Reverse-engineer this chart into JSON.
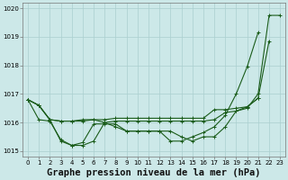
{
  "bg_color": "#cce8e8",
  "grid_color": "#aacfcf",
  "line_color": "#1a5c1a",
  "title": "Graphe pression niveau de la mer (hPa)",
  "xlim": [
    -0.5,
    23.5
  ],
  "ylim": [
    1014.8,
    1020.2
  ],
  "yticks": [
    1015,
    1016,
    1017,
    1018,
    1019,
    1020
  ],
  "xticks": [
    0,
    1,
    2,
    3,
    4,
    5,
    6,
    7,
    8,
    9,
    10,
    11,
    12,
    13,
    14,
    15,
    16,
    17,
    18,
    19,
    20,
    21,
    22,
    23
  ],
  "xtick_labels": [
    "0",
    "1",
    "2",
    "3",
    "4",
    "5",
    "6",
    "7",
    "8",
    "9",
    "10",
    "11",
    "12",
    "13",
    "14",
    "15",
    "16",
    "17",
    "18",
    "19",
    "20",
    "21",
    "22",
    "23"
  ],
  "series": [
    [
      1016.8,
      1016.6,
      1016.1,
      1015.35,
      1015.2,
      1015.2,
      1015.35,
      1016.0,
      1015.85,
      1015.7,
      1015.7,
      1015.7,
      1015.7,
      1015.7,
      1015.5,
      1015.35,
      1015.5,
      1015.5,
      1015.85,
      1016.4,
      1016.5,
      1017.0,
      1019.75,
      1019.75
    ],
    [
      1016.8,
      1016.6,
      1016.1,
      1016.05,
      1016.05,
      1016.05,
      1016.1,
      1016.0,
      1016.05,
      1016.05,
      1016.05,
      1016.05,
      1016.05,
      1016.05,
      1016.05,
      1016.05,
      1016.05,
      1016.1,
      1016.35,
      1016.4,
      1016.55,
      1016.85,
      1018.85,
      null
    ],
    [
      1016.8,
      1016.6,
      1016.1,
      1016.05,
      1016.05,
      1016.1,
      1016.1,
      1016.1,
      1016.15,
      1016.15,
      1016.15,
      1016.15,
      1016.15,
      1016.15,
      1016.15,
      1016.15,
      1016.15,
      1016.45,
      1016.45,
      1016.5,
      1016.55,
      1016.85,
      null,
      null
    ],
    [
      1016.8,
      1016.1,
      1016.05,
      1015.4,
      1015.2,
      1015.3,
      1015.95,
      1015.95,
      1015.95,
      1015.7,
      1015.7,
      1015.7,
      1015.7,
      1015.35,
      1015.35,
      1015.5,
      1015.65,
      1015.85,
      1016.25,
      1017.0,
      1017.95,
      1019.15,
      null,
      null
    ]
  ],
  "marker": "+",
  "markersize": 3,
  "linewidth": 0.8,
  "title_fontsize": 7.5,
  "tick_fontsize": 5,
  "title_fontweight": "bold"
}
